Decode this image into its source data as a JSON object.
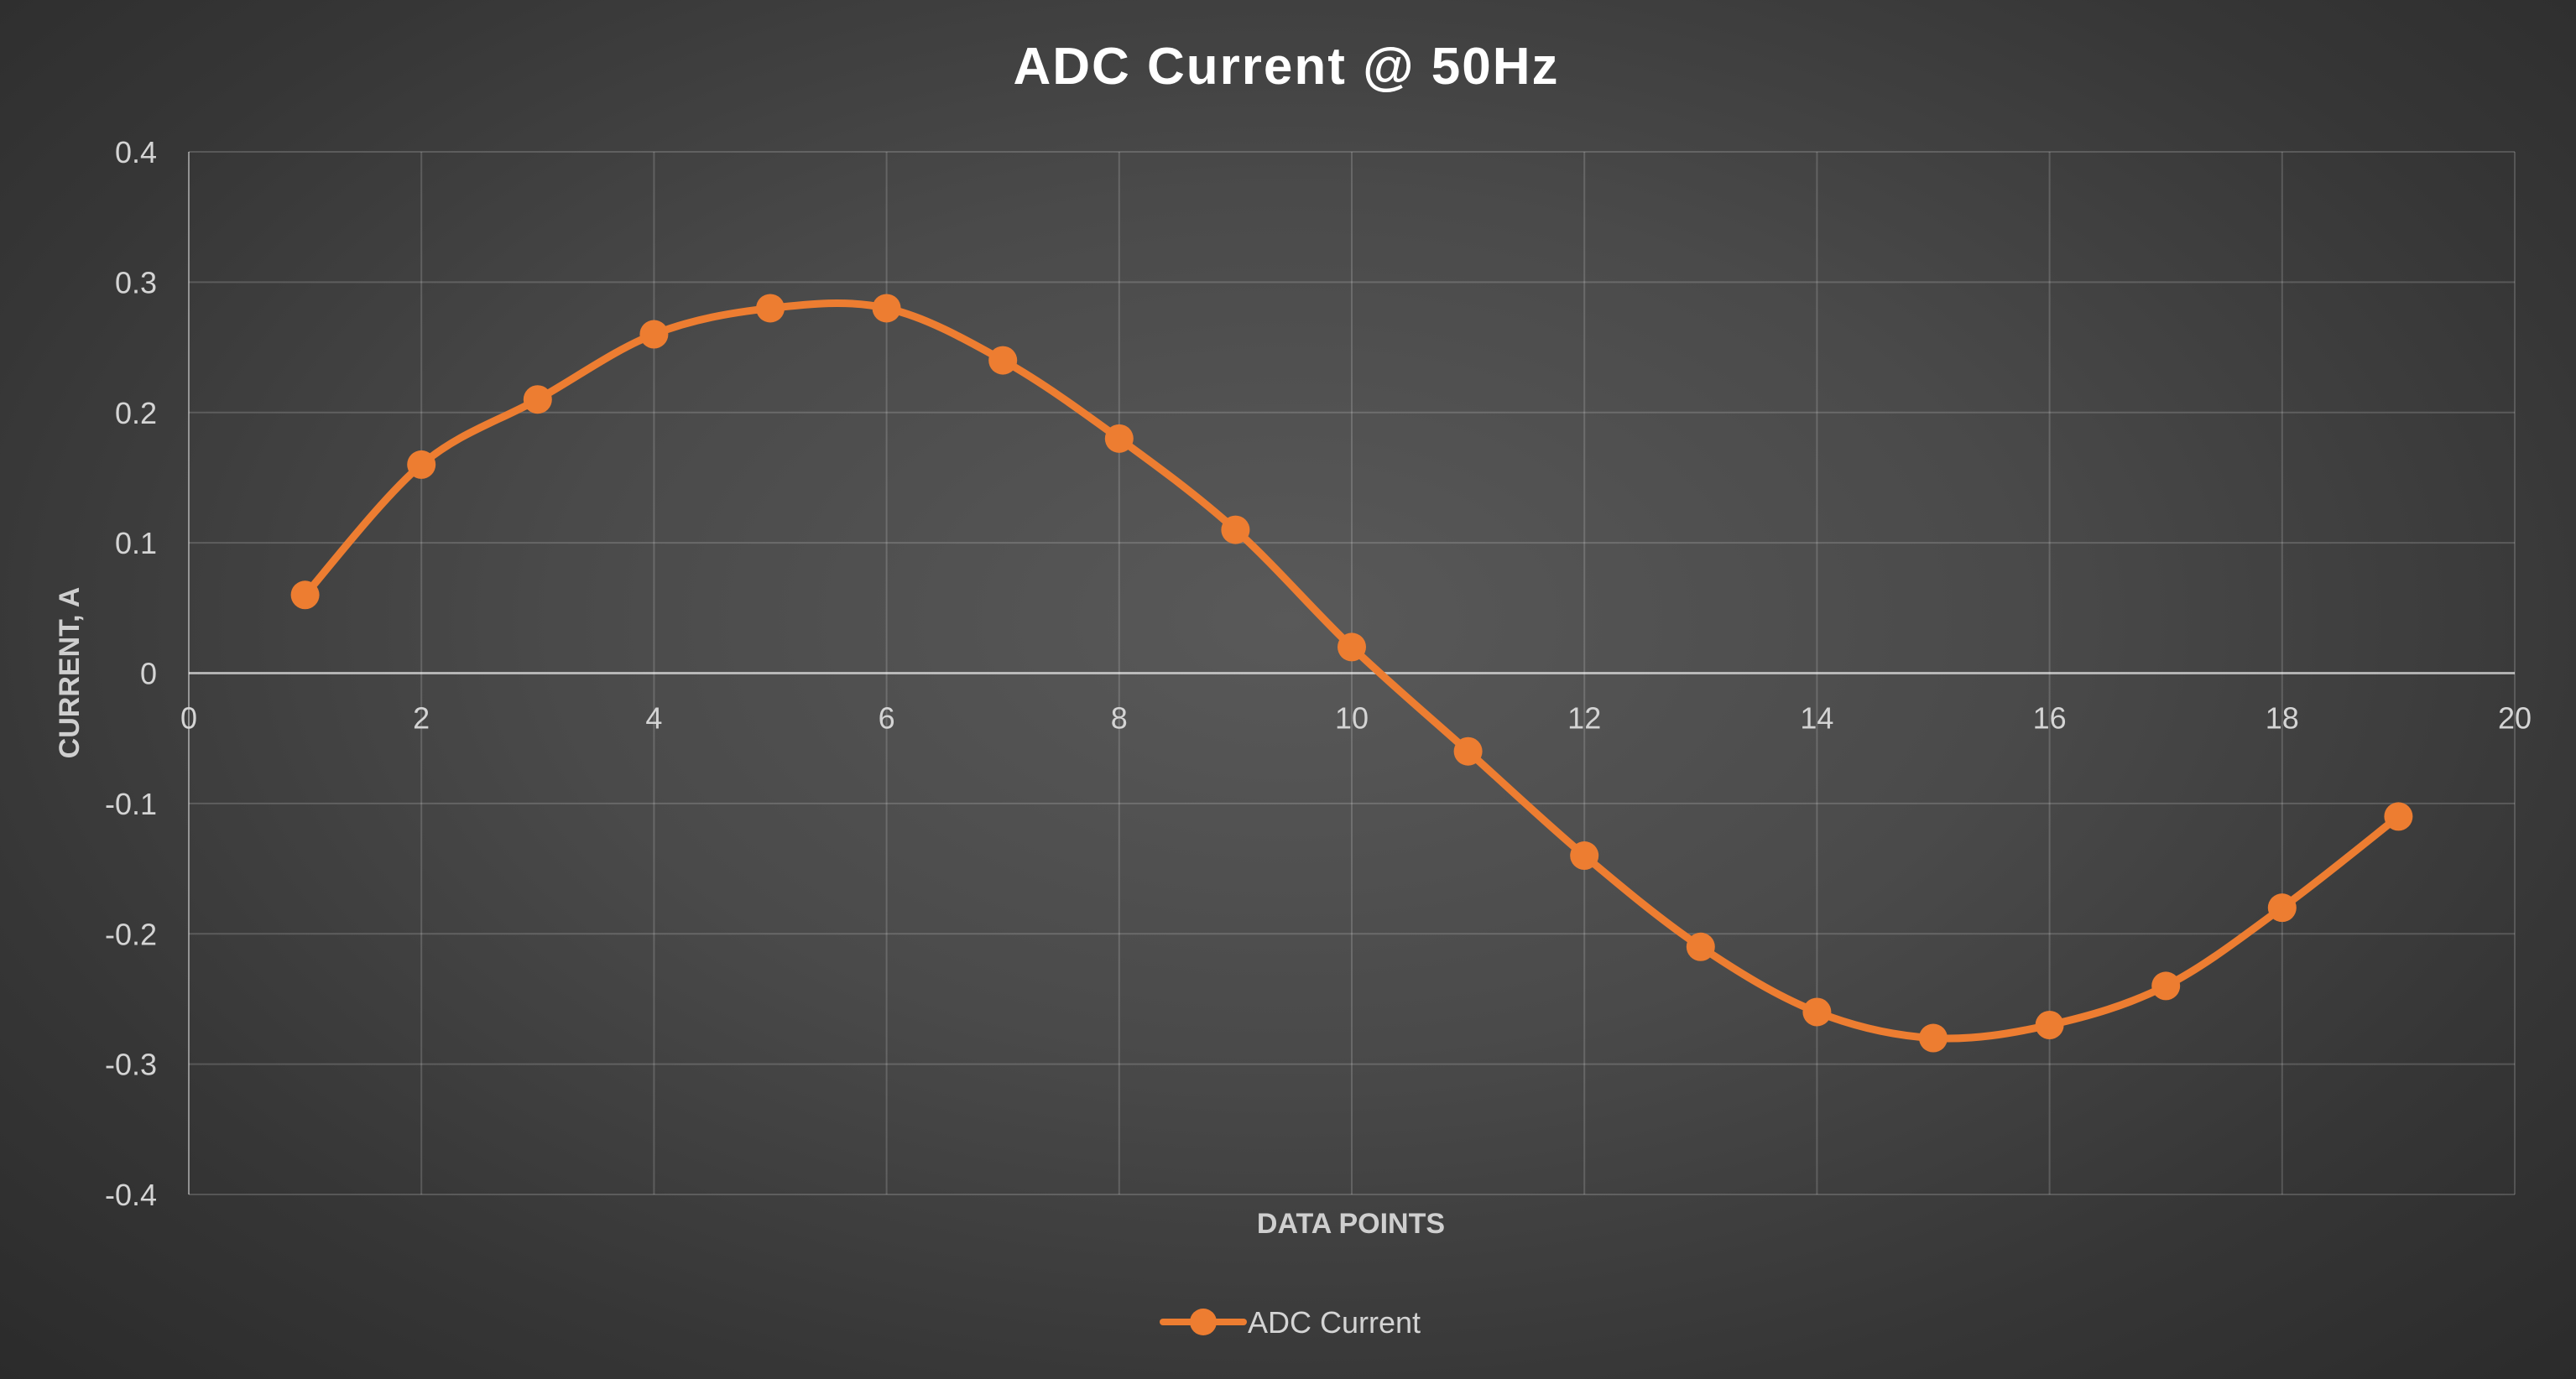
{
  "chart_data": {
    "type": "line",
    "title": "ADC Current @ 50Hz",
    "xlabel": "DATA POINTS",
    "ylabel": "CURRENT, A",
    "xlim": [
      0,
      20
    ],
    "ylim": [
      -0.4,
      0.4
    ],
    "x_ticks": [
      "0",
      "2",
      "4",
      "6",
      "8",
      "10",
      "12",
      "14",
      "16",
      "18",
      "20"
    ],
    "y_ticks": [
      "0.4",
      "0.3",
      "0.2",
      "0.1",
      "0",
      "-0.1",
      "-0.2",
      "-0.3",
      "-0.4"
    ],
    "grid": true,
    "smooth": true,
    "legend_position": "bottom",
    "series": [
      {
        "name": "ADC Current",
        "color": "#ED7D31",
        "marker": "circle",
        "x": [
          1,
          2,
          3,
          4,
          5,
          6,
          7,
          8,
          9,
          10,
          11,
          12,
          13,
          14,
          15,
          16,
          17,
          18,
          19
        ],
        "y": [
          0.06,
          0.16,
          0.21,
          0.26,
          0.28,
          0.28,
          0.24,
          0.18,
          0.11,
          0.02,
          -0.06,
          -0.14,
          -0.21,
          -0.26,
          -0.28,
          -0.27,
          -0.24,
          -0.18,
          -0.11
        ]
      }
    ]
  }
}
